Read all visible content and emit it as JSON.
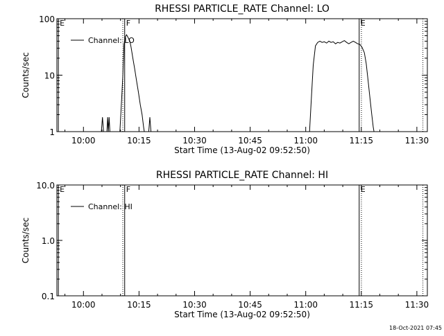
{
  "footer": {
    "timestamp": "18-Oct-2021 07:45"
  },
  "chart_data": [
    {
      "type": "line",
      "title": "RHESSI PARTICLE_RATE Channel: LO",
      "xlabel": "Start Time (13-Aug-02 09:52:50)",
      "ylabel": "Counts/sec",
      "y_scale": "log",
      "x_unit": "minutes after 09:52:50",
      "xlim": [
        0,
        100
      ],
      "ylim": [
        1,
        100
      ],
      "x_ticks": [
        {
          "x": 7.17,
          "label": "10:00"
        },
        {
          "x": 22.17,
          "label": "10:15"
        },
        {
          "x": 37.17,
          "label": "10:30"
        },
        {
          "x": 52.17,
          "label": "10:45"
        },
        {
          "x": 67.17,
          "label": "11:00"
        },
        {
          "x": 82.17,
          "label": "11:15"
        },
        {
          "x": 97.17,
          "label": "11:30"
        }
      ],
      "y_ticks": [
        {
          "y": 1,
          "label": "1"
        },
        {
          "y": 10,
          "label": "10"
        },
        {
          "y": 100,
          "label": "100"
        }
      ],
      "legend": {
        "position": "top-left",
        "entries": [
          "Channel: LO"
        ]
      },
      "markers": [
        {
          "x": 0.4,
          "label": "E",
          "style": "solid"
        },
        {
          "x": 18.3,
          "label": "F",
          "style": "solid"
        },
        {
          "x": 17.8,
          "label": "",
          "style": "dotted"
        },
        {
          "x": 81.6,
          "label": "E",
          "style": "solid"
        },
        {
          "x": 82.2,
          "label": "",
          "style": "dotted"
        },
        {
          "x": 98.8,
          "label": "",
          "style": "dotted"
        }
      ],
      "series": [
        {
          "name": "Channel: LO",
          "segments": [
            [
              [
                12.0,
                1
              ],
              [
                12.3,
                1.8
              ],
              [
                12.6,
                1
              ]
            ],
            [
              [
                13.5,
                1
              ],
              [
                13.7,
                1.8
              ],
              [
                13.9,
                1
              ],
              [
                14.1,
                1.8
              ],
              [
                14.3,
                1
              ]
            ],
            [
              [
                17.0,
                1
              ],
              [
                17.4,
                3
              ],
              [
                17.8,
                10
              ],
              [
                18.1,
                35
              ],
              [
                18.5,
                48
              ],
              [
                18.8,
                52
              ],
              [
                19.1,
                48
              ],
              [
                19.4,
                44
              ],
              [
                19.7,
                40
              ],
              [
                20.0,
                32
              ],
              [
                20.5,
                20
              ],
              [
                21.0,
                13
              ],
              [
                21.5,
                8
              ],
              [
                22.0,
                5
              ],
              [
                22.5,
                3
              ],
              [
                23.0,
                2
              ],
              [
                23.4,
                1.2
              ],
              [
                23.6,
                1
              ]
            ],
            [
              [
                24.8,
                1
              ],
              [
                25.1,
                1.8
              ],
              [
                25.4,
                1
              ]
            ],
            [
              [
                68.2,
                1
              ],
              [
                68.6,
                3
              ],
              [
                69.2,
                15
              ],
              [
                69.8,
                33
              ],
              [
                70.4,
                38
              ],
              [
                71.0,
                40
              ],
              [
                71.6,
                38
              ],
              [
                72.2,
                39
              ],
              [
                72.8,
                37
              ],
              [
                73.4,
                40
              ],
              [
                74.0,
                38
              ],
              [
                74.6,
                39
              ],
              [
                75.2,
                36
              ],
              [
                75.8,
                38
              ],
              [
                76.4,
                37
              ],
              [
                77.0,
                39
              ],
              [
                77.6,
                41
              ],
              [
                78.2,
                38
              ],
              [
                78.8,
                36
              ],
              [
                79.4,
                38
              ],
              [
                80.0,
                40
              ],
              [
                80.6,
                38
              ],
              [
                81.2,
                36
              ],
              [
                81.8,
                35
              ],
              [
                82.4,
                31
              ],
              [
                83.0,
                25
              ],
              [
                83.5,
                16
              ],
              [
                84.0,
                8
              ],
              [
                84.5,
                4
              ],
              [
                85.0,
                2
              ],
              [
                85.4,
                1.2
              ],
              [
                85.6,
                1
              ]
            ]
          ]
        }
      ]
    },
    {
      "type": "line",
      "title": "RHESSI PARTICLE_RATE Channel: HI",
      "xlabel": "Start Time (13-Aug-02 09:52:50)",
      "ylabel": "Counts/sec",
      "y_scale": "log",
      "x_unit": "minutes after 09:52:50",
      "xlim": [
        0,
        100
      ],
      "ylim": [
        0.1,
        10
      ],
      "x_ticks": [
        {
          "x": 7.17,
          "label": "10:00"
        },
        {
          "x": 22.17,
          "label": "10:15"
        },
        {
          "x": 37.17,
          "label": "10:30"
        },
        {
          "x": 52.17,
          "label": "10:45"
        },
        {
          "x": 67.17,
          "label": "11:00"
        },
        {
          "x": 82.17,
          "label": "11:15"
        },
        {
          "x": 97.17,
          "label": "11:30"
        }
      ],
      "y_ticks": [
        {
          "y": 0.1,
          "label": "0.1"
        },
        {
          "y": 1,
          "label": "1.0"
        },
        {
          "y": 10,
          "label": "10.0"
        }
      ],
      "legend": {
        "position": "top-left",
        "entries": [
          "Channel: HI"
        ]
      },
      "markers": [
        {
          "x": 0.4,
          "label": "E",
          "style": "solid"
        },
        {
          "x": 18.3,
          "label": "F",
          "style": "solid"
        },
        {
          "x": 17.8,
          "label": "",
          "style": "dotted"
        },
        {
          "x": 81.6,
          "label": "E",
          "style": "solid"
        },
        {
          "x": 82.2,
          "label": "",
          "style": "dotted"
        },
        {
          "x": 98.8,
          "label": "",
          "style": "dotted"
        }
      ],
      "series": [
        {
          "name": "Channel: HI",
          "segments": []
        }
      ]
    }
  ]
}
